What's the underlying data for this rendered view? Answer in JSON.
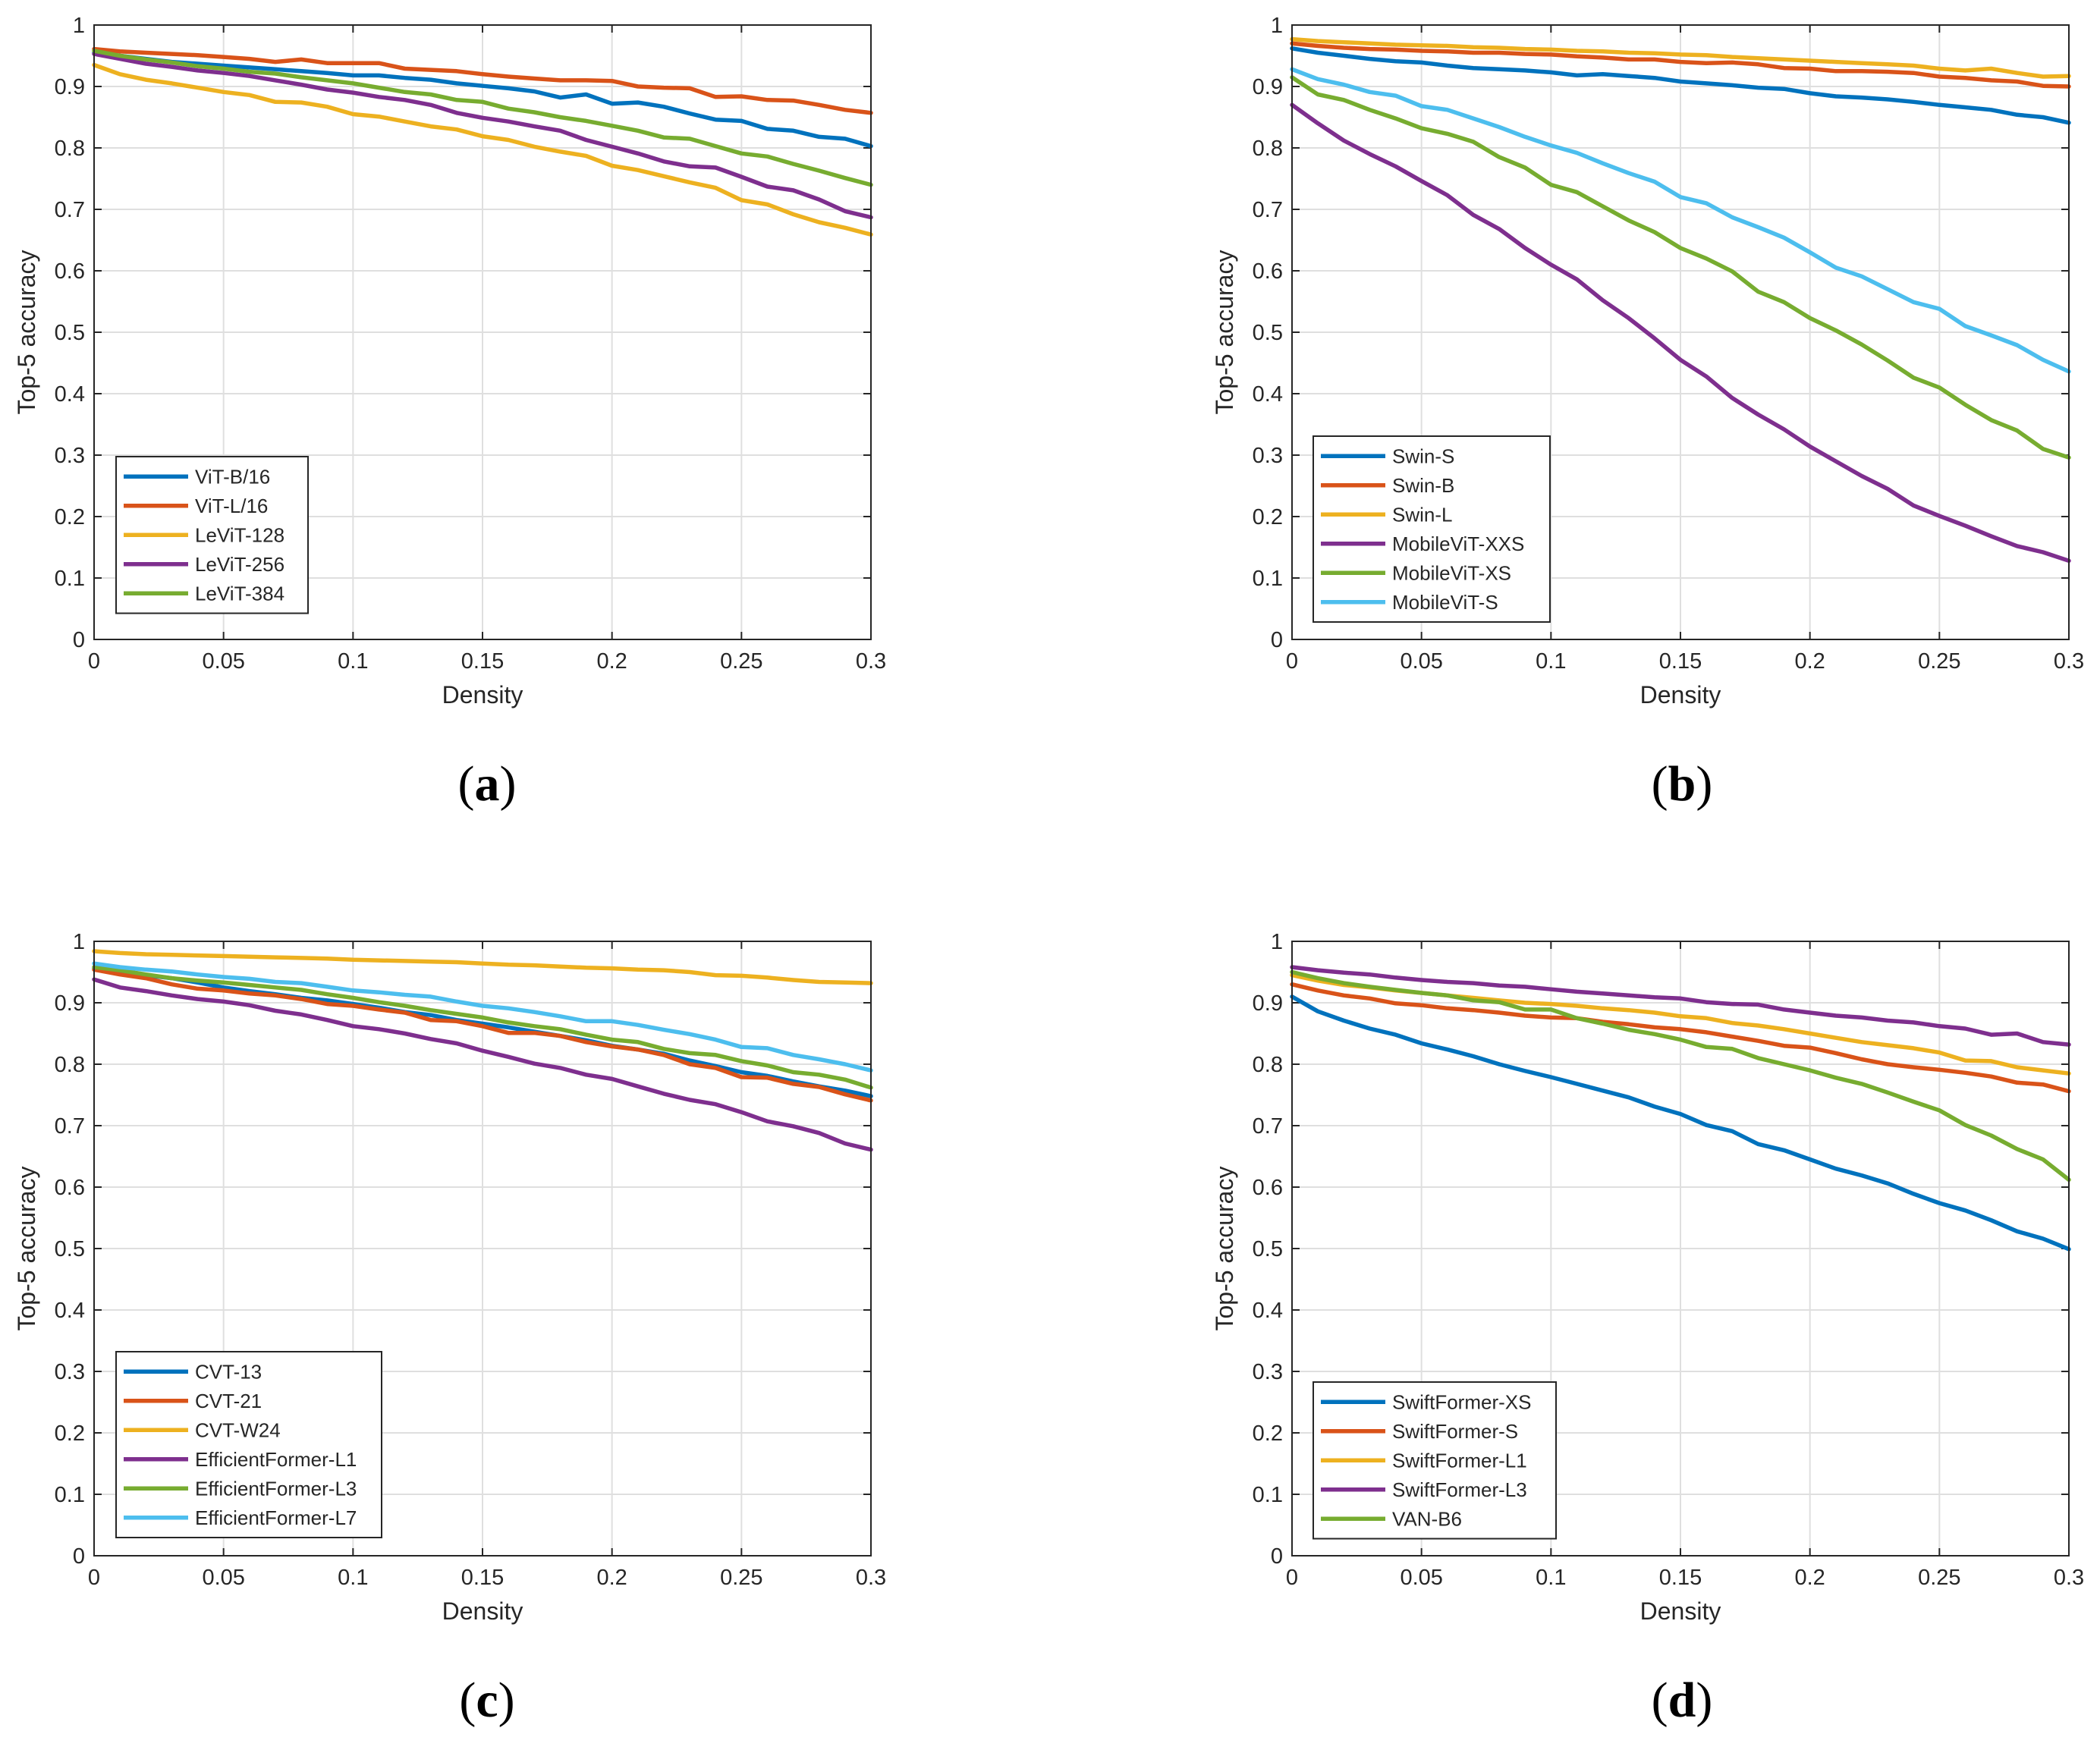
{
  "colors": {
    "blue": "#0072bd",
    "orange": "#d95319",
    "yellow": "#edb120",
    "purple": "#7e2f8e",
    "green": "#77ac30",
    "lightblue": "#4dbeee"
  },
  "chart_data": [
    {
      "type": "line",
      "caption": "a",
      "xlabel": "Density",
      "ylabel": "Top-5 accuracy",
      "xlim": [
        0,
        0.3
      ],
      "ylim": [
        0,
        1
      ],
      "xticks": [
        "0",
        "0.05",
        "0.1",
        "0.15",
        "0.2",
        "0.25",
        "0.3"
      ],
      "yticks": [
        "0",
        "0.1",
        "0.2",
        "0.3",
        "0.4",
        "0.5",
        "0.6",
        "0.7",
        "0.8",
        "0.9",
        "1"
      ],
      "grid": true,
      "legend_position": "bottom-left",
      "x": [
        0,
        0.01,
        0.02,
        0.03,
        0.04,
        0.05,
        0.06,
        0.07,
        0.08,
        0.09,
        0.1,
        0.11,
        0.12,
        0.13,
        0.14,
        0.15,
        0.16,
        0.17,
        0.18,
        0.19,
        0.2,
        0.21,
        0.22,
        0.23,
        0.24,
        0.25,
        0.26,
        0.27,
        0.28,
        0.29,
        0.3
      ],
      "series": [
        {
          "name": "ViT-B/16",
          "color": "#0072bd",
          "values": [
            0.955,
            0.95,
            0.945,
            0.94,
            0.937,
            0.934,
            0.931,
            0.928,
            0.925,
            0.922,
            0.918,
            0.918,
            0.914,
            0.911,
            0.905,
            0.901,
            0.897,
            0.892,
            0.882,
            0.887,
            0.872,
            0.874,
            0.867,
            0.856,
            0.846,
            0.844,
            0.831,
            0.828,
            0.818,
            0.815,
            0.803
          ]
        },
        {
          "name": "ViT-L/16",
          "color": "#d95319",
          "values": [
            0.961,
            0.957,
            0.955,
            0.953,
            0.951,
            0.948,
            0.945,
            0.94,
            0.944,
            0.938,
            0.938,
            0.938,
            0.929,
            0.927,
            0.925,
            0.92,
            0.916,
            0.913,
            0.91,
            0.91,
            0.909,
            0.9,
            0.898,
            0.897,
            0.883,
            0.884,
            0.878,
            0.877,
            0.87,
            0.862,
            0.857
          ]
        },
        {
          "name": "LeViT-128",
          "color": "#edb120",
          "values": [
            0.935,
            0.92,
            0.911,
            0.905,
            0.898,
            0.891,
            0.886,
            0.875,
            0.874,
            0.867,
            0.855,
            0.851,
            0.843,
            0.835,
            0.83,
            0.819,
            0.813,
            0.802,
            0.794,
            0.787,
            0.771,
            0.764,
            0.754,
            0.744,
            0.735,
            0.715,
            0.708,
            0.692,
            0.679,
            0.67,
            0.659
          ]
        },
        {
          "name": "LeViT-256",
          "color": "#7e2f8e",
          "values": [
            0.953,
            0.945,
            0.937,
            0.932,
            0.926,
            0.922,
            0.917,
            0.91,
            0.903,
            0.895,
            0.89,
            0.883,
            0.878,
            0.87,
            0.857,
            0.849,
            0.843,
            0.835,
            0.828,
            0.813,
            0.802,
            0.791,
            0.778,
            0.77,
            0.768,
            0.753,
            0.737,
            0.731,
            0.716,
            0.697,
            0.687
          ]
        },
        {
          "name": "LeViT-384",
          "color": "#77ac30",
          "values": [
            0.958,
            0.95,
            0.944,
            0.939,
            0.933,
            0.929,
            0.924,
            0.921,
            0.915,
            0.91,
            0.905,
            0.898,
            0.891,
            0.887,
            0.878,
            0.875,
            0.864,
            0.858,
            0.85,
            0.844,
            0.836,
            0.828,
            0.817,
            0.815,
            0.803,
            0.791,
            0.786,
            0.774,
            0.763,
            0.751,
            0.74
          ]
        }
      ]
    },
    {
      "type": "line",
      "caption": "b",
      "xlabel": "Density",
      "ylabel": "Top-5 accuracy",
      "xlim": [
        0,
        0.3
      ],
      "ylim": [
        0,
        1
      ],
      "xticks": [
        "0",
        "0.05",
        "0.1",
        "0.15",
        "0.2",
        "0.25",
        "0.3"
      ],
      "yticks": [
        "0",
        "0.1",
        "0.2",
        "0.3",
        "0.4",
        "0.5",
        "0.6",
        "0.7",
        "0.8",
        "0.9",
        "1"
      ],
      "grid": true,
      "legend_position": "bottom-left",
      "x": [
        0,
        0.01,
        0.02,
        0.03,
        0.04,
        0.05,
        0.06,
        0.07,
        0.08,
        0.09,
        0.1,
        0.11,
        0.12,
        0.13,
        0.14,
        0.15,
        0.16,
        0.17,
        0.18,
        0.19,
        0.2,
        0.21,
        0.22,
        0.23,
        0.24,
        0.25,
        0.26,
        0.27,
        0.28,
        0.29,
        0.3
      ],
      "series": [
        {
          "name": "Swin-S",
          "color": "#0072bd",
          "values": [
            0.962,
            0.955,
            0.95,
            0.945,
            0.941,
            0.939,
            0.934,
            0.93,
            0.928,
            0.926,
            0.923,
            0.918,
            0.92,
            0.917,
            0.914,
            0.908,
            0.905,
            0.902,
            0.898,
            0.896,
            0.889,
            0.884,
            0.882,
            0.879,
            0.875,
            0.87,
            0.866,
            0.862,
            0.854,
            0.85,
            0.841
          ]
        },
        {
          "name": "Swin-B",
          "color": "#d95319",
          "values": [
            0.97,
            0.966,
            0.963,
            0.961,
            0.96,
            0.958,
            0.957,
            0.955,
            0.955,
            0.953,
            0.952,
            0.949,
            0.947,
            0.944,
            0.944,
            0.94,
            0.938,
            0.939,
            0.936,
            0.93,
            0.929,
            0.925,
            0.925,
            0.924,
            0.922,
            0.916,
            0.914,
            0.91,
            0.908,
            0.901,
            0.9
          ]
        },
        {
          "name": "Swin-L",
          "color": "#edb120",
          "values": [
            0.977,
            0.974,
            0.972,
            0.97,
            0.968,
            0.967,
            0.966,
            0.964,
            0.963,
            0.961,
            0.96,
            0.958,
            0.957,
            0.955,
            0.954,
            0.952,
            0.951,
            0.948,
            0.946,
            0.944,
            0.942,
            0.94,
            0.938,
            0.936,
            0.934,
            0.929,
            0.926,
            0.929,
            0.922,
            0.916,
            0.917
          ]
        },
        {
          "name": "MobileViT-XXS",
          "color": "#7e2f8e",
          "values": [
            0.87,
            0.84,
            0.812,
            0.79,
            0.77,
            0.746,
            0.723,
            0.691,
            0.668,
            0.637,
            0.61,
            0.586,
            0.552,
            0.523,
            0.49,
            0.455,
            0.428,
            0.393,
            0.366,
            0.342,
            0.314,
            0.29,
            0.266,
            0.245,
            0.218,
            0.201,
            0.185,
            0.168,
            0.152,
            0.142,
            0.128
          ]
        },
        {
          "name": "MobileViT-XS",
          "color": "#77ac30",
          "values": [
            0.915,
            0.887,
            0.878,
            0.862,
            0.848,
            0.832,
            0.823,
            0.81,
            0.785,
            0.768,
            0.74,
            0.728,
            0.705,
            0.682,
            0.663,
            0.637,
            0.62,
            0.599,
            0.566,
            0.549,
            0.523,
            0.503,
            0.48,
            0.454,
            0.426,
            0.41,
            0.382,
            0.357,
            0.34,
            0.31,
            0.296
          ]
        },
        {
          "name": "MobileViT-S",
          "color": "#4dbeee",
          "values": [
            0.928,
            0.912,
            0.903,
            0.891,
            0.885,
            0.868,
            0.862,
            0.848,
            0.834,
            0.818,
            0.804,
            0.792,
            0.775,
            0.759,
            0.745,
            0.72,
            0.71,
            0.687,
            0.671,
            0.654,
            0.63,
            0.605,
            0.591,
            0.57,
            0.549,
            0.538,
            0.51,
            0.495,
            0.479,
            0.455,
            0.436
          ]
        }
      ]
    },
    {
      "type": "line",
      "caption": "c",
      "xlabel": "Density",
      "ylabel": "Top-5 accuracy",
      "xlim": [
        0,
        0.3
      ],
      "ylim": [
        0,
        1
      ],
      "xticks": [
        "0",
        "0.05",
        "0.1",
        "0.15",
        "0.2",
        "0.25",
        "0.3"
      ],
      "yticks": [
        "0",
        "0.1",
        "0.2",
        "0.3",
        "0.4",
        "0.5",
        "0.6",
        "0.7",
        "0.8",
        "0.9",
        "1"
      ],
      "grid": true,
      "legend_position": "bottom-left",
      "x": [
        0,
        0.01,
        0.02,
        0.03,
        0.04,
        0.05,
        0.06,
        0.07,
        0.08,
        0.09,
        0.1,
        0.11,
        0.12,
        0.13,
        0.14,
        0.15,
        0.16,
        0.17,
        0.18,
        0.19,
        0.2,
        0.21,
        0.22,
        0.23,
        0.24,
        0.25,
        0.26,
        0.27,
        0.28,
        0.29,
        0.3
      ],
      "series": [
        {
          "name": "CVT-13",
          "color": "#0072bd",
          "values": [
            0.956,
            0.95,
            0.945,
            0.94,
            0.933,
            0.925,
            0.919,
            0.914,
            0.908,
            0.904,
            0.898,
            0.892,
            0.885,
            0.88,
            0.872,
            0.866,
            0.86,
            0.853,
            0.846,
            0.839,
            0.83,
            0.824,
            0.817,
            0.806,
            0.797,
            0.787,
            0.781,
            0.772,
            0.764,
            0.757,
            0.748
          ]
        },
        {
          "name": "CVT-21",
          "color": "#d95319",
          "values": [
            0.954,
            0.946,
            0.94,
            0.93,
            0.923,
            0.92,
            0.915,
            0.912,
            0.906,
            0.898,
            0.895,
            0.889,
            0.884,
            0.872,
            0.87,
            0.862,
            0.851,
            0.851,
            0.846,
            0.836,
            0.829,
            0.824,
            0.815,
            0.8,
            0.794,
            0.779,
            0.778,
            0.768,
            0.763,
            0.751,
            0.741
          ]
        },
        {
          "name": "CVT-W24",
          "color": "#edb120",
          "values": [
            0.984,
            0.981,
            0.979,
            0.978,
            0.977,
            0.976,
            0.975,
            0.974,
            0.973,
            0.972,
            0.97,
            0.969,
            0.968,
            0.967,
            0.966,
            0.964,
            0.962,
            0.961,
            0.959,
            0.957,
            0.956,
            0.954,
            0.953,
            0.95,
            0.945,
            0.944,
            0.941,
            0.937,
            0.934,
            0.933,
            0.932
          ]
        },
        {
          "name": "EfficientFormer-L1",
          "color": "#7e2f8e",
          "values": [
            0.938,
            0.925,
            0.919,
            0.912,
            0.906,
            0.902,
            0.896,
            0.887,
            0.881,
            0.872,
            0.862,
            0.857,
            0.85,
            0.841,
            0.834,
            0.822,
            0.812,
            0.801,
            0.794,
            0.783,
            0.776,
            0.764,
            0.752,
            0.742,
            0.735,
            0.722,
            0.707,
            0.699,
            0.688,
            0.671,
            0.661
          ]
        },
        {
          "name": "EfficientFormer-L3",
          "color": "#77ac30",
          "values": [
            0.958,
            0.953,
            0.946,
            0.94,
            0.936,
            0.933,
            0.929,
            0.925,
            0.921,
            0.914,
            0.908,
            0.901,
            0.895,
            0.888,
            0.882,
            0.876,
            0.868,
            0.862,
            0.857,
            0.848,
            0.84,
            0.836,
            0.825,
            0.818,
            0.815,
            0.805,
            0.798,
            0.787,
            0.783,
            0.775,
            0.762
          ]
        },
        {
          "name": "EfficientFormer-L7",
          "color": "#4dbeee",
          "values": [
            0.964,
            0.958,
            0.954,
            0.951,
            0.946,
            0.942,
            0.939,
            0.934,
            0.932,
            0.926,
            0.92,
            0.917,
            0.913,
            0.91,
            0.902,
            0.895,
            0.891,
            0.885,
            0.878,
            0.87,
            0.87,
            0.864,
            0.856,
            0.849,
            0.84,
            0.828,
            0.826,
            0.815,
            0.808,
            0.8,
            0.79
          ]
        }
      ]
    },
    {
      "type": "line",
      "caption": "d",
      "xlabel": "Density",
      "ylabel": "Top-5 accuracy",
      "xlim": [
        0,
        0.3
      ],
      "ylim": [
        0,
        1
      ],
      "xticks": [
        "0",
        "0.05",
        "0.1",
        "0.15",
        "0.2",
        "0.25",
        "0.3"
      ],
      "yticks": [
        "0",
        "0.1",
        "0.2",
        "0.3",
        "0.4",
        "0.5",
        "0.6",
        "0.7",
        "0.8",
        "0.9",
        "1"
      ],
      "grid": true,
      "legend_position": "bottom-left",
      "x": [
        0,
        0.01,
        0.02,
        0.03,
        0.04,
        0.05,
        0.06,
        0.07,
        0.08,
        0.09,
        0.1,
        0.11,
        0.12,
        0.13,
        0.14,
        0.15,
        0.16,
        0.17,
        0.18,
        0.19,
        0.2,
        0.21,
        0.22,
        0.23,
        0.24,
        0.25,
        0.26,
        0.27,
        0.28,
        0.29,
        0.3
      ],
      "series": [
        {
          "name": "SwiftFormer-XS",
          "color": "#0072bd",
          "values": [
            0.91,
            0.886,
            0.871,
            0.858,
            0.848,
            0.834,
            0.824,
            0.813,
            0.8,
            0.789,
            0.779,
            0.768,
            0.757,
            0.746,
            0.731,
            0.719,
            0.701,
            0.691,
            0.67,
            0.66,
            0.645,
            0.63,
            0.619,
            0.606,
            0.589,
            0.574,
            0.562,
            0.546,
            0.528,
            0.516,
            0.499
          ]
        },
        {
          "name": "SwiftFormer-S",
          "color": "#d95319",
          "values": [
            0.93,
            0.92,
            0.912,
            0.907,
            0.899,
            0.896,
            0.891,
            0.888,
            0.884,
            0.879,
            0.876,
            0.875,
            0.869,
            0.865,
            0.86,
            0.857,
            0.852,
            0.845,
            0.838,
            0.83,
            0.827,
            0.818,
            0.808,
            0.8,
            0.795,
            0.791,
            0.786,
            0.78,
            0.77,
            0.767,
            0.756
          ]
        },
        {
          "name": "SwiftFormer-L1",
          "color": "#edb120",
          "values": [
            0.945,
            0.936,
            0.929,
            0.925,
            0.92,
            0.916,
            0.912,
            0.908,
            0.904,
            0.9,
            0.898,
            0.895,
            0.891,
            0.888,
            0.884,
            0.878,
            0.875,
            0.867,
            0.863,
            0.857,
            0.85,
            0.843,
            0.836,
            0.831,
            0.826,
            0.819,
            0.806,
            0.805,
            0.795,
            0.79,
            0.785
          ]
        },
        {
          "name": "SwiftFormer-L3",
          "color": "#7e2f8e",
          "values": [
            0.958,
            0.953,
            0.949,
            0.946,
            0.941,
            0.937,
            0.934,
            0.932,
            0.928,
            0.926,
            0.922,
            0.918,
            0.915,
            0.912,
            0.909,
            0.907,
            0.901,
            0.898,
            0.897,
            0.889,
            0.884,
            0.879,
            0.876,
            0.871,
            0.868,
            0.862,
            0.858,
            0.848,
            0.85,
            0.836,
            0.832
          ]
        },
        {
          "name": "VAN-B6",
          "color": "#77ac30",
          "values": [
            0.95,
            0.94,
            0.932,
            0.926,
            0.921,
            0.916,
            0.912,
            0.904,
            0.901,
            0.889,
            0.889,
            0.875,
            0.866,
            0.856,
            0.849,
            0.84,
            0.828,
            0.825,
            0.81,
            0.8,
            0.79,
            0.778,
            0.768,
            0.754,
            0.739,
            0.725,
            0.701,
            0.684,
            0.662,
            0.645,
            0.612
          ]
        }
      ]
    }
  ]
}
